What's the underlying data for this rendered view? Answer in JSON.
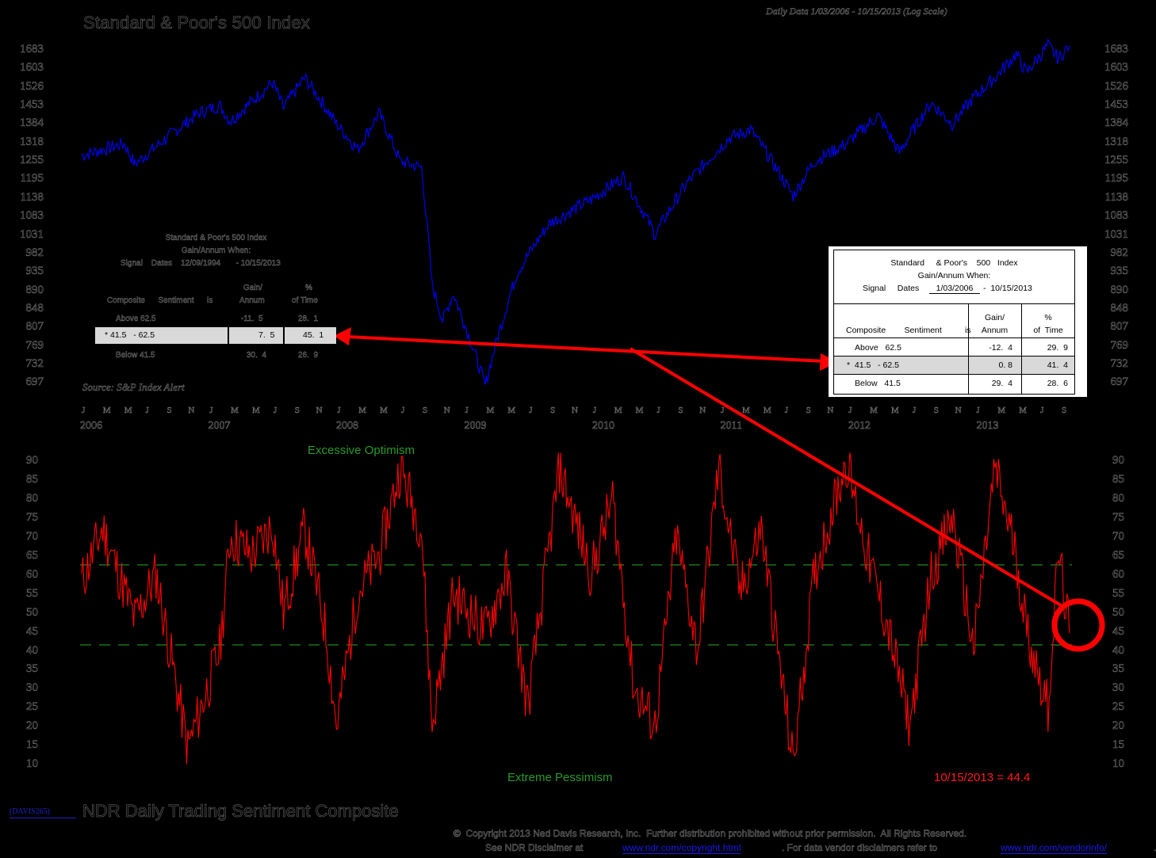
{
  "header": {
    "title": "Standard & Poor's 500 Index",
    "subtitle": "Daily Data 1/03/2006 - 10/15/2013 (Log Scale)"
  },
  "top_axis": {
    "ticks": [
      "1683",
      "1603",
      "1526",
      "1453",
      "1384",
      "1318",
      "1255",
      "1195",
      "1138",
      "1083",
      "1031",
      "982",
      "935",
      "890",
      "848",
      "807",
      "769",
      "732",
      "697"
    ]
  },
  "time_axis": {
    "months": [
      "J",
      "M",
      "M",
      "J",
      "S",
      "N",
      "J",
      "M",
      "M",
      "J",
      "S",
      "N",
      "J",
      "M",
      "M",
      "J",
      "S",
      "N",
      "J",
      "M",
      "M",
      "J",
      "S",
      "N",
      "J",
      "M",
      "M",
      "J",
      "S",
      "N",
      "J",
      "M",
      "M",
      "J",
      "S",
      "N",
      "J",
      "M",
      "M",
      "J",
      "S",
      "N",
      "J",
      "M",
      "M",
      "J",
      "S"
    ],
    "years": [
      "2006",
      "2007",
      "2008",
      "2009",
      "2010",
      "2011",
      "2012",
      "2013"
    ]
  },
  "ghost_table": {
    "title1": "Standard    & Poor's    500   Index",
    "title2": "Gain/Annum When:",
    "title3": "Signal    Dates    12/09/1994       - 10/15/2013",
    "col_gain1": "Gain/",
    "col_gain2": "Annum",
    "col_pct1": "%",
    "col_pct2": "of Time",
    "col_comp": "Composite      Sentiment      is",
    "rows": [
      {
        "label": "Above   62.5",
        "gain": "-11.  5",
        "pct": "28.  1"
      },
      {
        "label": "* 41.5   - 62.5",
        "gain": "7.  5",
        "pct": "45.  1"
      },
      {
        "label": "Below   41.5",
        "gain": "30.  4",
        "pct": "26.  9"
      }
    ],
    "source": "Source: S&P Index Alert"
  },
  "stats_table": {
    "title1": "Standard     & Poor's    500   Index",
    "title2": "Gain/Annum When:",
    "signal_label": "Signal     Dates",
    "signal_start": "1/03/2006",
    "signal_end": "-  10/15/2013",
    "col_comp": "Composite        Sentiment          is",
    "col_gain1": "Gain/",
    "col_gain2": "Annum",
    "col_pct1": "%",
    "col_pct2": "of  Time",
    "rows": [
      {
        "label": "Above   62.5",
        "gain": "-12.  4",
        "pct": "29.  9"
      },
      {
        "label": "*  41.5   - 62.5",
        "gain": "0. 8",
        "pct": "41.  4"
      },
      {
        "label": "Below   41.5",
        "gain": "29.  4",
        "pct": "28.  6"
      }
    ]
  },
  "bottom_axis": {
    "ticks": [
      "90",
      "85",
      "80",
      "75",
      "70",
      "65",
      "60",
      "55",
      "50",
      "45",
      "40",
      "35",
      "30",
      "25",
      "20",
      "15",
      "10"
    ]
  },
  "annotations": {
    "optimism": "Excessive Optimism",
    "pessimism": "Extreme Pessimism",
    "latest": "10/15/2013 = 44.4"
  },
  "footer": {
    "code": "(DAVIS265)",
    "title": "NDR Daily Trading Sentiment Composite",
    "copyright": "©  Copyright 2013 Ned Davis Research, Inc.  Further distribution prohibited without prior permission.  All Rights Reserved.",
    "disclaimer_pre": "See NDR Disclaimer at",
    "link1": "www.ndr.com/copyright.html",
    "disclaimer_mid": ". For data vendor disclaimers refer to",
    "link2": "www.ndr.com/vendorinfo/",
    "disclaimer_end": "."
  },
  "colors": {
    "sp500_line": "#0000ee",
    "sentiment_line": "#ff0000",
    "threshold_line": "#1f8a1f",
    "arrow": "#ff0000",
    "background": "#000000"
  },
  "chart_data": [
    {
      "type": "line",
      "title": "Standard & Poor's 500 Index",
      "subtitle": "Daily Data 1/03/2006 - 10/15/2013 (Log Scale)",
      "xlabel": "",
      "ylabel": "",
      "yscale": "log",
      "ylim": [
        697,
        1683
      ],
      "grid": false,
      "x": [
        "2006-01",
        "2006-05",
        "2006-06",
        "2006-12",
        "2007-02",
        "2007-03",
        "2007-07",
        "2007-08",
        "2007-10",
        "2008-01",
        "2008-03",
        "2008-05",
        "2008-07",
        "2008-09",
        "2008-10",
        "2008-11",
        "2008-12",
        "2009-03",
        "2009-06",
        "2009-09",
        "2010-01",
        "2010-04",
        "2010-07",
        "2010-10",
        "2011-02",
        "2011-04",
        "2011-08",
        "2011-10",
        "2012-01",
        "2012-04",
        "2012-06",
        "2012-09",
        "2012-11",
        "2013-01",
        "2013-03",
        "2013-05",
        "2013-06",
        "2013-08",
        "2013-09",
        "2013-10"
      ],
      "series": [
        {
          "name": "S&P 500",
          "values": [
            1270,
            1310,
            1240,
            1420,
            1450,
            1390,
            1540,
            1440,
            1560,
            1380,
            1290,
            1420,
            1250,
            1230,
            900,
            820,
            880,
            690,
            930,
            1060,
            1130,
            1200,
            1030,
            1180,
            1330,
            1360,
            1140,
            1250,
            1310,
            1410,
            1280,
            1460,
            1380,
            1480,
            1560,
            1660,
            1580,
            1700,
            1640,
            1700
          ]
        }
      ]
    },
    {
      "type": "line",
      "title": "NDR Daily Trading Sentiment Composite",
      "xlabel": "",
      "ylabel": "",
      "ylim": [
        10,
        90
      ],
      "grid": false,
      "thresholds": [
        {
          "label": "Excessive Optimism",
          "value": 62.5
        },
        {
          "label": "Extreme Pessimism",
          "value": 41.5
        }
      ],
      "latest": {
        "date": "10/15/2013",
        "value": 44.4
      },
      "x": [
        "2006-01",
        "2006-03",
        "2006-06",
        "2006-08",
        "2006-11",
        "2007-02",
        "2007-03",
        "2007-05",
        "2007-07",
        "2007-08",
        "2007-10",
        "2007-12",
        "2008-01",
        "2008-03",
        "2008-05",
        "2008-07",
        "2008-09",
        "2008-10",
        "2008-12",
        "2009-03",
        "2009-05",
        "2009-07",
        "2009-10",
        "2010-01",
        "2010-03",
        "2010-05",
        "2010-07",
        "2010-09",
        "2010-11",
        "2011-01",
        "2011-03",
        "2011-05",
        "2011-08",
        "2011-10",
        "2012-01",
        "2012-03",
        "2012-05",
        "2012-07",
        "2012-09",
        "2012-11",
        "2013-01",
        "2013-03",
        "2013-05",
        "2013-06",
        "2013-08",
        "2013-09",
        "2013-10"
      ],
      "series": [
        {
          "name": "Sentiment Composite",
          "values": [
            58,
            72,
            48,
            60,
            14,
            40,
            70,
            65,
            73,
            50,
            72,
            45,
            20,
            55,
            65,
            88,
            72,
            20,
            55,
            45,
            60,
            25,
            88,
            60,
            80,
            30,
            20,
            70,
            40,
            88,
            55,
            72,
            10,
            60,
            90,
            65,
            45,
            20,
            60,
            75,
            40,
            88,
            65,
            45,
            25,
            66,
            44.4
          ]
        }
      ]
    }
  ]
}
